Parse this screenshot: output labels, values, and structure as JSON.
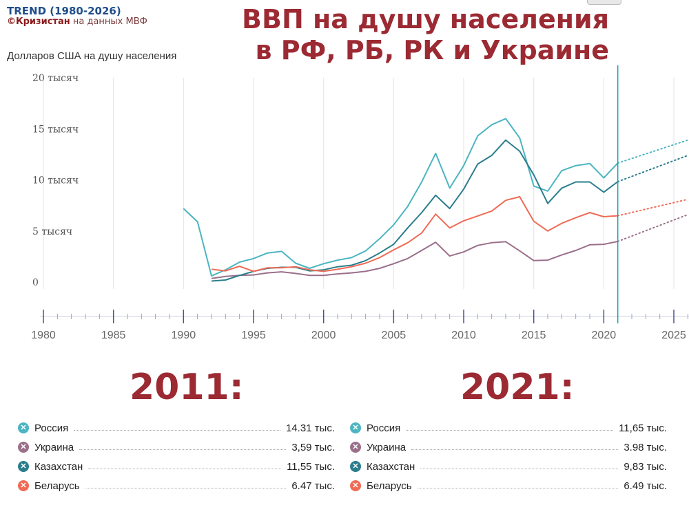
{
  "brand": {
    "title": "TREND (1980-2026)",
    "credit_name": "©Кризистан",
    "credit_source": "на данных МВФ"
  },
  "headline": {
    "line1": "ВВП на душу населения",
    "line2": "в РФ, РБ, РК и Украине"
  },
  "chart_data": {
    "type": "line",
    "ylabel": "Долларов США на душу населения",
    "ylim": [
      0,
      20000
    ],
    "y_ticks": [
      {
        "value": 20000,
        "label": "20 тысяч"
      },
      {
        "value": 15000,
        "label": "15 тысяч"
      },
      {
        "value": 10000,
        "label": "10 тысяч"
      },
      {
        "value": 5000,
        "label": "5 тысяч"
      },
      {
        "value": 0,
        "label": "0"
      }
    ],
    "xlim": [
      1980,
      2026
    ],
    "x_ticks": [
      1980,
      1985,
      1990,
      1995,
      2000,
      2005,
      2010,
      2015,
      2020,
      2025
    ],
    "marker_year": 2021,
    "grid": true,
    "series": [
      {
        "name": "Россия",
        "color": "#4bb5c1",
        "x": [
          1990,
          1991,
          1992,
          1993,
          1994,
          1995,
          1996,
          1997,
          1998,
          1999,
          2000,
          2001,
          2002,
          2003,
          2004,
          2005,
          2006,
          2007,
          2008,
          2009,
          2010,
          2011,
          2012,
          2013,
          2014,
          2015,
          2016,
          2017,
          2018,
          2019,
          2020,
          2021
        ],
        "values": [
          7200,
          5900,
          600,
          1200,
          1950,
          2300,
          2850,
          3000,
          1850,
          1350,
          1800,
          2150,
          2400,
          3050,
          4250,
          5600,
          7400,
          9800,
          12600,
          9200,
          11400,
          14310,
          15400,
          16000,
          14100,
          9400,
          8900,
          10900,
          11400,
          11600,
          10200,
          11650
        ],
        "forecast": {
          "x": [
            2021,
            2026
          ],
          "values": [
            11650,
            13900
          ]
        }
      },
      {
        "name": "Украина",
        "color": "#9a6f8a",
        "x": [
          1992,
          1993,
          1994,
          1995,
          1996,
          1997,
          1998,
          1999,
          2000,
          2001,
          2002,
          2003,
          2004,
          2005,
          2006,
          2007,
          2008,
          2009,
          2010,
          2011,
          2012,
          2013,
          2014,
          2015,
          2016,
          2017,
          2018,
          2019,
          2020,
          2021
        ],
        "values": [
          350,
          550,
          650,
          700,
          900,
          1000,
          850,
          650,
          650,
          800,
          900,
          1050,
          1350,
          1800,
          2300,
          3100,
          3900,
          2550,
          2950,
          3590,
          3850,
          3950,
          3050,
          2100,
          2150,
          2650,
          3100,
          3650,
          3700,
          3980
        ],
        "forecast": {
          "x": [
            2021,
            2026
          ],
          "values": [
            3980,
            6600
          ]
        }
      },
      {
        "name": "Казахстан",
        "color": "#2a7d8c",
        "x": [
          1992,
          1993,
          1994,
          1995,
          1996,
          1997,
          1998,
          1999,
          2000,
          2001,
          2002,
          2003,
          2004,
          2005,
          2006,
          2007,
          2008,
          2009,
          2010,
          2011,
          2012,
          2013,
          2014,
          2015,
          2016,
          2017,
          2018,
          2019,
          2020,
          2021
        ],
        "values": [
          100,
          200,
          650,
          1050,
          1350,
          1450,
          1450,
          1100,
          1200,
          1500,
          1650,
          2100,
          2850,
          3700,
          5300,
          6800,
          8500,
          7200,
          9100,
          11550,
          12400,
          13900,
          12800,
          10500,
          7700,
          9200,
          9800,
          9800,
          8800,
          9830
        ],
        "forecast": {
          "x": [
            2021,
            2026
          ],
          "values": [
            9830,
            12400
          ]
        }
      },
      {
        "name": "Беларусь",
        "color": "#ef6b55",
        "x": [
          1992,
          1993,
          1994,
          1995,
          1996,
          1997,
          1998,
          1999,
          2000,
          2001,
          2002,
          2003,
          2004,
          2005,
          2006,
          2007,
          2008,
          2009,
          2010,
          2011,
          2012,
          2013,
          2014,
          2015,
          2016,
          2017,
          2018,
          2019,
          2020,
          2021
        ],
        "values": [
          1250,
          1100,
          1550,
          1050,
          1400,
          1400,
          1500,
          1200,
          1050,
          1250,
          1500,
          1850,
          2400,
          3150,
          3850,
          4800,
          6650,
          5300,
          6000,
          6470,
          6950,
          8000,
          8350,
          5950,
          5000,
          5750,
          6300,
          6800,
          6400,
          6490
        ],
        "forecast": {
          "x": [
            2021,
            2026
          ],
          "values": [
            6490,
            8100
          ]
        }
      }
    ]
  },
  "summary_2011": {
    "year_label": "2011:",
    "rows": [
      {
        "name": "Россия",
        "value": "14.31 тыс.",
        "color": "#4bb5c1"
      },
      {
        "name": "Украина",
        "value": "3,59 тыс.",
        "color": "#9a6f8a"
      },
      {
        "name": "Казахстан",
        "value": "11,55 тыс.",
        "color": "#2a7d8c"
      },
      {
        "name": "Беларусь",
        "value": "6.47 тыс.",
        "color": "#ef6b55"
      }
    ]
  },
  "summary_2021": {
    "year_label": "2021:",
    "rows": [
      {
        "name": "Россия",
        "value": "11,65 тыс.",
        "color": "#4bb5c1"
      },
      {
        "name": "Украина",
        "value": "3.98 тыс.",
        "color": "#9a6f8a"
      },
      {
        "name": "Казахстан",
        "value": "9,83 тыс.",
        "color": "#2a7d8c"
      },
      {
        "name": "Беларусь",
        "value": "6.49 тыс.",
        "color": "#ef6b55"
      }
    ]
  }
}
